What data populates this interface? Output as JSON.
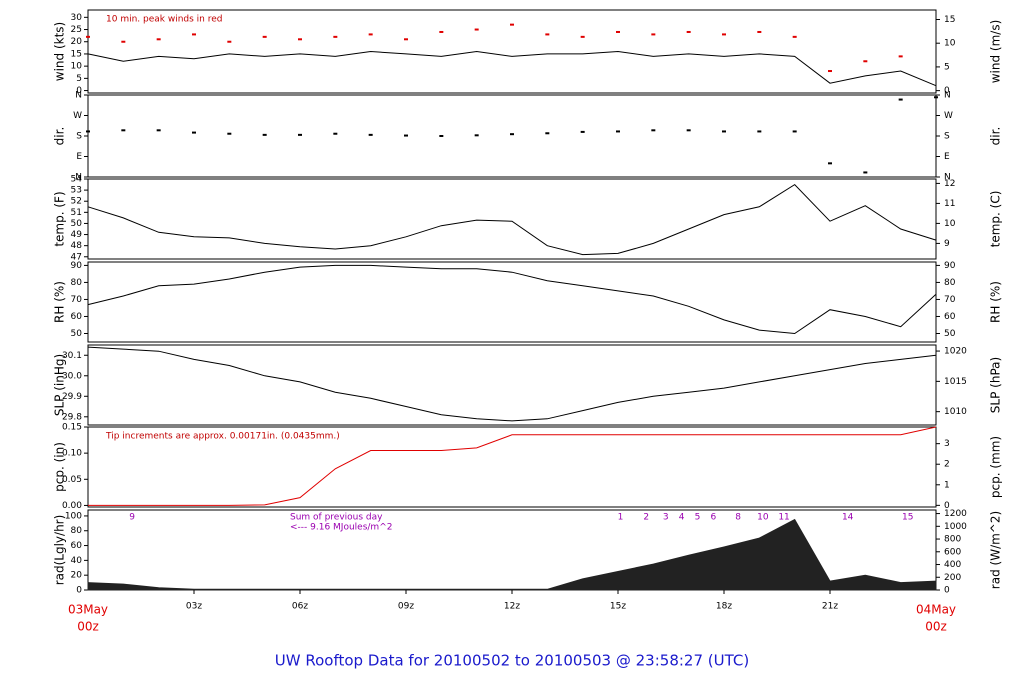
{
  "title": "UW Rooftop Data for 20100502  to  20100503 @ 23:58:27  (UTC)",
  "time_axis": {
    "x": [
      0,
      1,
      2,
      3,
      4,
      5,
      6,
      7,
      8,
      9,
      10,
      11,
      12,
      13,
      14,
      15,
      16,
      17,
      18,
      19,
      20,
      21,
      22,
      23,
      24
    ],
    "xlim": [
      0,
      24
    ],
    "xticks": [
      {
        "value": 3,
        "label": "03z"
      },
      {
        "value": 6,
        "label": "06z"
      },
      {
        "value": 9,
        "label": "09z"
      },
      {
        "value": 12,
        "label": "12z"
      },
      {
        "value": 15,
        "label": "15z"
      },
      {
        "value": 18,
        "label": "18z"
      },
      {
        "value": 21,
        "label": "21z"
      }
    ],
    "start_label": [
      "03May",
      "00z"
    ],
    "end_label": [
      "04May",
      "00z"
    ]
  },
  "chart_data": [
    {
      "type": "line",
      "ylabel": "wind (kts)",
      "y2label": "wind (m/s)",
      "note": "10 min. peak winds in red",
      "ylim": [
        -1,
        33
      ],
      "yticks": [
        0,
        5,
        10,
        15,
        20,
        25,
        30
      ],
      "y2lim": [
        -0.5,
        17
      ],
      "y2ticks": [
        0,
        5,
        10,
        15
      ],
      "series": [
        {
          "color": "#000000",
          "style": "line",
          "values": [
            15,
            12,
            14,
            13,
            15,
            14,
            15,
            14,
            16,
            15,
            14,
            16,
            14,
            15,
            15,
            16,
            14,
            15,
            14,
            15,
            14,
            3,
            6,
            8,
            2
          ]
        },
        {
          "color": "#e00000",
          "style": "points",
          "values": [
            22,
            20,
            21,
            23,
            20,
            22,
            21,
            22,
            23,
            21,
            24,
            25,
            27,
            23,
            22,
            24,
            23,
            24,
            23,
            24,
            22,
            8,
            12,
            14,
            null
          ]
        }
      ]
    },
    {
      "type": "scatter",
      "ylabel": "dir.",
      "y2label": "dir.",
      "ylim": [
        0,
        360
      ],
      "yticks": [
        {
          "value": 0,
          "label": "N"
        },
        {
          "value": 90,
          "label": "E"
        },
        {
          "value": 180,
          "label": "S"
        },
        {
          "value": 270,
          "label": "W"
        },
        {
          "value": 360,
          "label": "N"
        }
      ],
      "y2lim": [
        0,
        360
      ],
      "y2ticks": [
        {
          "value": 0,
          "label": "N"
        },
        {
          "value": 90,
          "label": "E"
        },
        {
          "value": 180,
          "label": "S"
        },
        {
          "value": 270,
          "label": "W"
        },
        {
          "value": 360,
          "label": "N"
        }
      ],
      "series": [
        {
          "color": "#000000",
          "style": "points",
          "values": [
            200,
            205,
            205,
            195,
            190,
            185,
            185,
            190,
            185,
            182,
            180,
            183,
            188,
            192,
            198,
            200,
            205,
            205,
            200,
            200,
            200,
            60,
            20,
            340,
            350
          ]
        }
      ]
    },
    {
      "type": "line",
      "ylabel": "temp. (F)",
      "y2label": "temp. (C)",
      "ylim": [
        46.8,
        54
      ],
      "yticks": [
        47,
        48,
        49,
        50,
        51,
        52,
        53,
        54
      ],
      "y2lim": [
        8.22,
        12.22
      ],
      "y2ticks": [
        9,
        10,
        11,
        12
      ],
      "series": [
        {
          "color": "#000000",
          "style": "line",
          "values": [
            51.5,
            50.5,
            49.2,
            48.8,
            48.7,
            48.2,
            47.9,
            47.7,
            48,
            48.8,
            49.8,
            50.3,
            50.2,
            48,
            47.2,
            47.3,
            48.2,
            49.5,
            50.8,
            51.5,
            53.5,
            50.2,
            51.6,
            49.5,
            48.5
          ]
        }
      ]
    },
    {
      "type": "line",
      "ylabel": "RH (%)",
      "y2label": "RH (%)",
      "ylim": [
        45,
        92
      ],
      "yticks": [
        50,
        60,
        70,
        80,
        90
      ],
      "y2lim": [
        45,
        92
      ],
      "y2ticks": [
        50,
        60,
        70,
        80,
        90
      ],
      "series": [
        {
          "color": "#000000",
          "style": "line",
          "values": [
            67,
            72,
            78,
            79,
            82,
            86,
            89,
            90,
            90,
            89,
            88,
            88,
            86,
            81,
            78,
            75,
            72,
            66,
            58,
            52,
            50,
            64,
            60,
            54,
            73
          ]
        }
      ]
    },
    {
      "type": "line",
      "ylabel": "SLP (inHg)",
      "y2label": "SLP (hPa)",
      "ylim": [
        29.76,
        30.15
      ],
      "yticks": [
        29.8,
        29.9,
        {
          "value": 30,
          "label": "30.0"
        },
        30.1
      ],
      "y2lim": [
        1007.8,
        1021
      ],
      "y2ticks": [
        1010,
        1015,
        1020
      ],
      "series": [
        {
          "color": "#000000",
          "style": "line",
          "values": [
            30.14,
            30.13,
            30.12,
            30.08,
            30.05,
            30,
            29.97,
            29.92,
            29.89,
            29.85,
            29.81,
            29.79,
            29.78,
            29.79,
            29.83,
            29.87,
            29.9,
            29.92,
            29.94,
            29.97,
            30,
            30.03,
            30.06,
            30.08,
            30.1
          ]
        }
      ]
    },
    {
      "type": "line",
      "ylabel": "pcp. (in)",
      "y2label": "pcp. (mm)",
      "note": "Tip increments are approx. 0.00171in. (0.0435mm.)",
      "ylim": [
        -0.003,
        0.15
      ],
      "yticks": [
        {
          "value": 0,
          "label": "0.00"
        },
        {
          "value": 0.05,
          "label": "0.05"
        },
        {
          "value": 0.1,
          "label": "0.10"
        },
        {
          "value": 0.15,
          "label": "0.15"
        }
      ],
      "y2lim": [
        -0.08,
        3.81
      ],
      "y2ticks": [
        0,
        1,
        2,
        3
      ],
      "series": [
        {
          "color": "#e00000",
          "style": "line",
          "values": [
            0,
            0,
            0,
            0,
            0,
            0.001,
            0.015,
            0.07,
            0.105,
            0.105,
            0.105,
            0.11,
            0.135,
            0.135,
            0.135,
            0.135,
            0.135,
            0.135,
            0.135,
            0.135,
            0.135,
            0.135,
            0.135,
            0.135,
            0.15
          ]
        }
      ]
    },
    {
      "type": "area",
      "ylabel": "rad(Lgly/hr)",
      "y2label": "rad (W/m^2)",
      "ylim": [
        0,
        108
      ],
      "yticks": [
        0,
        20,
        40,
        60,
        80,
        100
      ],
      "y2lim": [
        0,
        1256
      ],
      "y2ticks": [
        0,
        200,
        400,
        600,
        800,
        1000,
        1200
      ],
      "annotation": [
        "Sum of previous day",
        "<--- 9.16 MJoules/m^2"
      ],
      "hour_markers": [
        {
          "value": 1.25,
          "label": "9"
        },
        {
          "value": 15.07,
          "label": "1"
        },
        {
          "value": 15.8,
          "label": "2"
        },
        {
          "value": 16.35,
          "label": "3"
        },
        {
          "value": 16.8,
          "label": "4"
        },
        {
          "value": 17.25,
          "label": "5"
        },
        {
          "value": 17.7,
          "label": "6"
        },
        {
          "value": 18.4,
          "label": "8"
        },
        {
          "value": 19.1,
          "label": "10"
        },
        {
          "value": 19.7,
          "label": "11"
        },
        {
          "value": 21.5,
          "label": "14"
        },
        {
          "value": 23.2,
          "label": "15"
        }
      ],
      "series": [
        {
          "color": "#222222",
          "style": "area",
          "values": [
            10,
            8,
            3,
            1,
            1,
            1,
            1,
            1,
            1,
            1,
            1,
            1,
            1,
            1,
            15,
            25,
            35,
            47,
            58,
            70,
            95,
            12,
            20,
            10,
            12
          ]
        }
      ]
    }
  ]
}
